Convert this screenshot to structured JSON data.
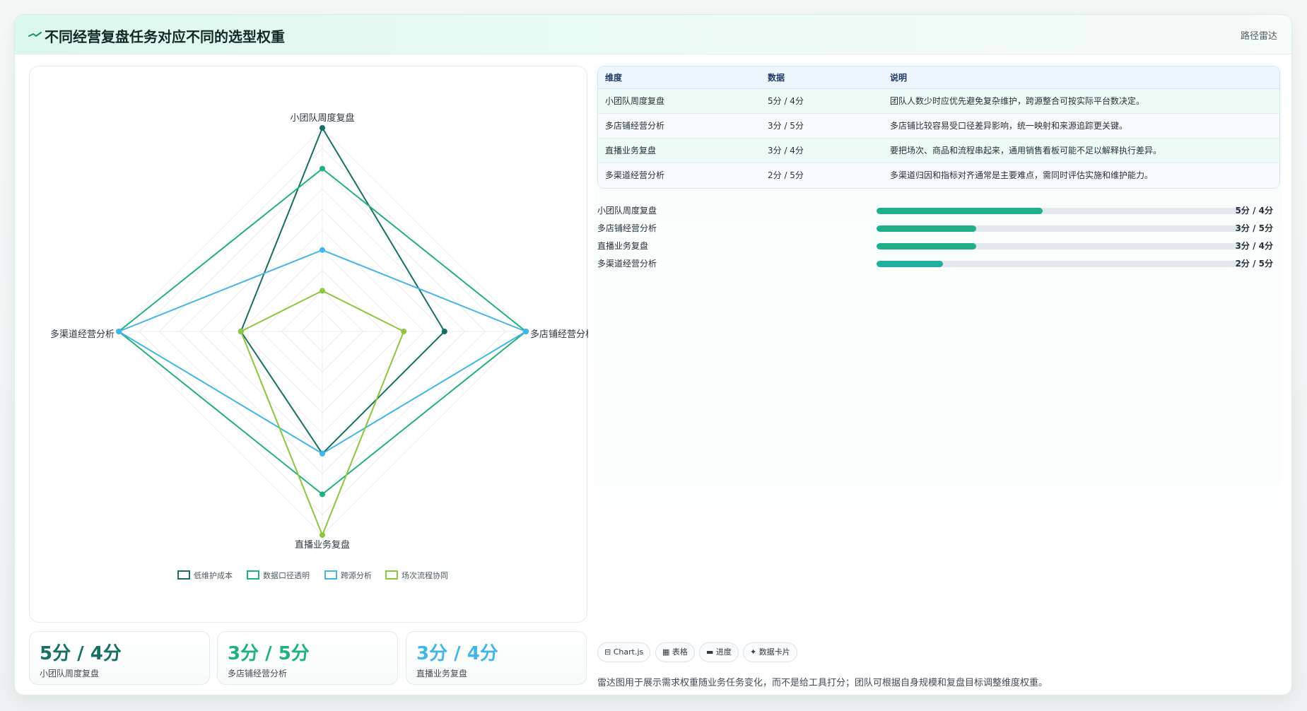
{
  "header": {
    "title": "不同经营复盘任务对应不同的选型权重",
    "tag": "路径雷达",
    "icon": "trend-icon"
  },
  "colors": {
    "dark_teal": "#166f62",
    "green": "#22b07d",
    "blue": "#43b6e6",
    "lime": "#8cc63e"
  },
  "chart_data": {
    "type": "radar",
    "title": "",
    "categories": [
      "小团队周度复盘",
      "多店铺经营分析",
      "直播业务复盘",
      "多渠道经营分析"
    ],
    "range": [
      0,
      5
    ],
    "grid": true,
    "legend_position": "bottom",
    "series": [
      {
        "name": "低维护成本",
        "values": [
          5,
          3,
          3,
          2
        ],
        "color": "#166f62"
      },
      {
        "name": "数据口径透明",
        "values": [
          4,
          5,
          4,
          5
        ],
        "color": "#22b07d"
      },
      {
        "name": "跨源分析",
        "values": [
          2,
          5,
          3,
          5
        ],
        "color": "#43b6e6"
      },
      {
        "name": "场次流程协同",
        "values": [
          1,
          2,
          5,
          2
        ],
        "color": "#8cc63e"
      }
    ]
  },
  "stats": [
    {
      "value": "5分 / 4分",
      "label": "小团队周度复盘",
      "color": "#166f62"
    },
    {
      "value": "3分 / 5分",
      "label": "多店铺经营分析",
      "color": "#22b07d"
    },
    {
      "value": "3分 / 4分",
      "label": "直播业务复盘",
      "color": "#43b6e6"
    }
  ],
  "table": {
    "headers": [
      "维度",
      "数据",
      "说明"
    ],
    "rows": [
      [
        "小团队周度复盘",
        "5分 / 4分",
        "团队人数少时应优先避免复杂维护，跨源整合可按实际平台数决定。"
      ],
      [
        "多店铺经营分析",
        "3分 / 5分",
        "多店铺比较容易受口径差异影响，统一映射和来源追踪更关键。"
      ],
      [
        "直播业务复盘",
        "3分 / 4分",
        "要把场次、商品和流程串起来，通用销售看板可能不足以解释执行差异。"
      ],
      [
        "多渠道经营分析",
        "2分 / 5分",
        "多渠道归因和指标对齐通常是主要难点，需同时评估实施和维护能力。"
      ]
    ]
  },
  "progress": [
    {
      "label": "小团队周度复盘",
      "value_text": "5分 / 4分",
      "fraction": 0.45,
      "color": "#1fb08a"
    },
    {
      "label": "多店铺经营分析",
      "value_text": "3分 / 5分",
      "fraction": 0.27,
      "color": "#1fb08a"
    },
    {
      "label": "直播业务复盘",
      "value_text": "3分 / 4分",
      "fraction": 0.27,
      "color": "#1fb08a"
    },
    {
      "label": "多渠道经营分析",
      "value_text": "2分 / 5分",
      "fraction": 0.18,
      "color": "#1fb0a0"
    }
  ],
  "chips": [
    {
      "icon": "chart-icon",
      "glyph": "⊟",
      "label": "Chart.js"
    },
    {
      "icon": "table-icon",
      "glyph": "▦",
      "label": "表格"
    },
    {
      "icon": "progress-icon",
      "glyph": "▬",
      "label": "进度"
    },
    {
      "icon": "card-icon",
      "glyph": "✦",
      "label": "数据卡片"
    }
  ],
  "footnote": "雷达图用于展示需求权重随业务任务变化，而不是给工具打分；团队可根据自身规模和复盘目标调整维度权重。"
}
